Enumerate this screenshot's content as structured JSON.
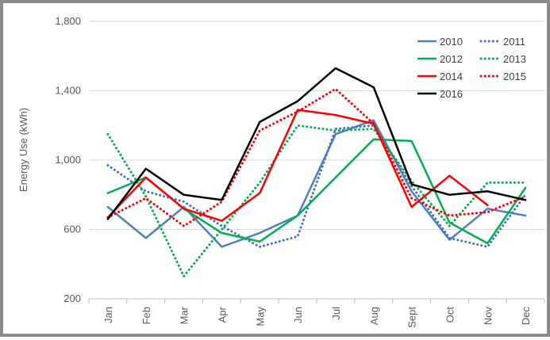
{
  "chart_data": {
    "type": "line",
    "title": "",
    "xlabel": "",
    "ylabel": "Energy Use (kWh)",
    "ylim": [
      200,
      1800
    ],
    "yticks": [
      "200",
      "600",
      "1,000",
      "1,400",
      "1,800"
    ],
    "ytick_values": [
      200,
      600,
      1000,
      1400,
      1800
    ],
    "categories": [
      "Jan",
      "Feb",
      "Mar",
      "Apr",
      "May",
      "Jun",
      "Jul",
      "Aug",
      "Sept",
      "Oct",
      "Nov",
      "Dec"
    ],
    "grid": true,
    "legend_position": "top-right",
    "series": [
      {
        "name": "2010",
        "color": "#4f81bd",
        "dash": "solid",
        "values": [
          730,
          550,
          730,
          500,
          580,
          680,
          1150,
          1230,
          820,
          540,
          720,
          680
        ]
      },
      {
        "name": "2011",
        "color": "#4472c4",
        "dash": "dotted",
        "values": [
          970,
          820,
          760,
          620,
          500,
          560,
          1180,
          1200,
          850,
          550,
          500,
          800
        ]
      },
      {
        "name": "2012",
        "color": "#00b050",
        "dash": "solid",
        "values": [
          810,
          900,
          720,
          580,
          530,
          680,
          900,
          1120,
          1110,
          640,
          520,
          840
        ]
      },
      {
        "name": "2013",
        "color": "#00b050",
        "dash": "dotted",
        "values": [
          1150,
          790,
          330,
          600,
          870,
          1200,
          1170,
          1180,
          880,
          620,
          870,
          870
        ]
      },
      {
        "name": "2014",
        "color": "#ff0000",
        "dash": "solid",
        "values": [
          670,
          900,
          720,
          650,
          810,
          1290,
          1260,
          1210,
          730,
          910,
          740,
          null
        ]
      },
      {
        "name": "2015",
        "color": "#ff0000",
        "dash": "dotted",
        "values": [
          670,
          780,
          620,
          760,
          1170,
          1280,
          1410,
          1210,
          780,
          680,
          700,
          790
        ]
      },
      {
        "name": "2016",
        "color": "#000000",
        "dash": "solid",
        "values": [
          660,
          950,
          800,
          770,
          1220,
          1340,
          1530,
          1420,
          860,
          800,
          820,
          770
        ]
      }
    ]
  }
}
